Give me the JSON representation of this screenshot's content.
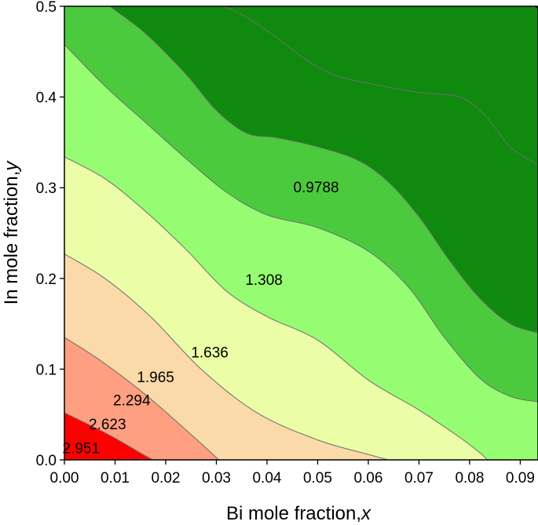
{
  "chart_data": {
    "type": "contour",
    "title": "",
    "xlabel": "Bi mole fraction,",
    "xlabel_var": "x",
    "ylabel": "In mole fraction,",
    "ylabel_var": "y",
    "xlim": [
      0.0,
      0.0935
    ],
    "ylim": [
      0.0,
      0.5
    ],
    "x_ticks": [
      "0.00",
      "0.01",
      "0.02",
      "0.03",
      "0.04",
      "0.05",
      "0.06",
      "0.07",
      "0.08",
      "0.09"
    ],
    "y_ticks": [
      "0.0",
      "0.1",
      "0.2",
      "0.3",
      "0.4",
      "0.5"
    ],
    "grid": false,
    "levels": [
      {
        "label": "2.951",
        "label_at": [
          0.0033,
          0.027
        ],
        "line": [
          [
            0.0,
            0.052
          ],
          [
            0.009,
            0.027
          ],
          [
            0.0155,
            0.006
          ],
          [
            0.0175,
            0.0
          ]
        ]
      },
      {
        "label": "2.623",
        "label_at": [
          0.0085,
          0.08
        ],
        "line": [
          [
            0.0,
            0.135
          ],
          [
            0.007,
            0.11
          ],
          [
            0.016,
            0.072
          ],
          [
            0.025,
            0.028
          ],
          [
            0.0305,
            0.0
          ]
        ]
      },
      {
        "label": "2.294",
        "label_at": [
          0.0133,
          0.132
        ],
        "line": [
          [
            0.0,
            0.227
          ],
          [
            0.008,
            0.2
          ],
          [
            0.017,
            0.158
          ],
          [
            0.027,
            0.1
          ],
          [
            0.038,
            0.052
          ],
          [
            0.05,
            0.022
          ],
          [
            0.06,
            0.006
          ],
          [
            0.064,
            0.0
          ]
        ]
      },
      {
        "label": "1.965",
        "label_at": [
          0.018,
          0.183
        ],
        "line": [
          [
            0.0,
            0.334
          ],
          [
            0.008,
            0.31
          ],
          [
            0.016,
            0.274
          ],
          [
            0.024,
            0.232
          ],
          [
            0.032,
            0.186
          ],
          [
            0.04,
            0.158
          ],
          [
            0.05,
            0.132
          ],
          [
            0.06,
            0.088
          ],
          [
            0.07,
            0.055
          ],
          [
            0.078,
            0.025
          ],
          [
            0.082,
            0.008
          ],
          [
            0.0835,
            0.0
          ]
        ]
      },
      {
        "label": "1.636",
        "label_at": [
          0.0287,
          0.238
        ],
        "line": [
          [
            0.0,
            0.458
          ],
          [
            0.008,
            0.412
          ],
          [
            0.016,
            0.372
          ],
          [
            0.024,
            0.332
          ],
          [
            0.032,
            0.295
          ],
          [
            0.04,
            0.27
          ],
          [
            0.05,
            0.256
          ],
          [
            0.06,
            0.23
          ],
          [
            0.068,
            0.19
          ],
          [
            0.075,
            0.135
          ],
          [
            0.082,
            0.09
          ],
          [
            0.088,
            0.07
          ],
          [
            0.0935,
            0.064
          ]
        ]
      },
      {
        "label": "1.308",
        "label_at": [
          0.0394,
          0.398
        ],
        "line": [
          [
            0.0089,
            0.5
          ],
          [
            0.016,
            0.47
          ],
          [
            0.024,
            0.425
          ],
          [
            0.03,
            0.385
          ],
          [
            0.036,
            0.36
          ],
          [
            0.042,
            0.355
          ],
          [
            0.05,
            0.345
          ],
          [
            0.058,
            0.33
          ],
          [
            0.064,
            0.306
          ],
          [
            0.07,
            0.268
          ],
          [
            0.076,
            0.22
          ],
          [
            0.082,
            0.178
          ],
          [
            0.088,
            0.15
          ],
          [
            0.0935,
            0.14
          ]
        ]
      },
      {
        "label": "0.9788",
        "label_at": [
          0.0497,
          0.602
        ],
        "line": [
          [
            0.0315,
            0.5
          ],
          [
            0.036,
            0.488
          ],
          [
            0.042,
            0.465
          ],
          [
            0.048,
            0.44
          ],
          [
            0.054,
            0.423
          ],
          [
            0.062,
            0.413
          ],
          [
            0.07,
            0.405
          ],
          [
            0.078,
            0.4
          ],
          [
            0.083,
            0.38
          ],
          [
            0.088,
            0.345
          ],
          [
            0.0935,
            0.325
          ]
        ]
      }
    ],
    "extra_boundary": [
      [
        0.0923,
        0.5
      ],
      [
        0.0935,
        0.497
      ]
    ],
    "band_colors": [
      "#ff0000",
      "#ff6a55",
      "#fd9f80",
      "#fadaa8",
      "#ebfda6",
      "#96fd72",
      "#4cca3d",
      "#0f8a0f",
      "#0e1a0e"
    ]
  }
}
